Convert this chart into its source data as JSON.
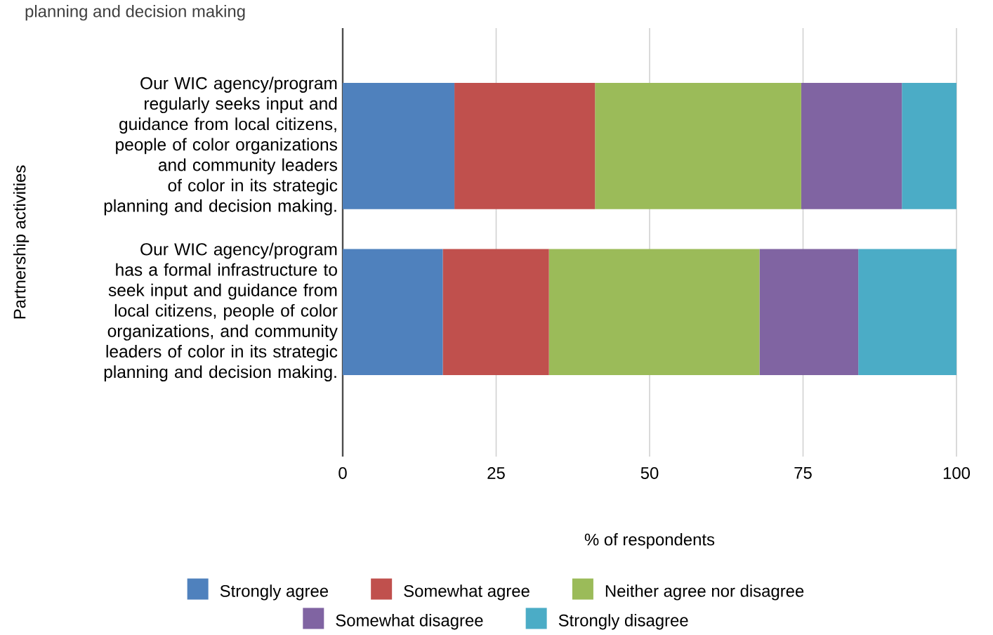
{
  "chart_data": {
    "type": "bar",
    "orientation": "horizontal",
    "stacked": true,
    "title": "planning and decision making",
    "categories": [
      "Our WIC agency/program regularly seeks input and guidance from local citizens, people of color organizations and community leaders of color in its strategic planning and decision making.",
      "Our WIC agency/program has a formal infrastructure to seek input and guidance from local citizens, people of color organizations, and community leaders of color in its strategic planning and decision making."
    ],
    "series": [
      {
        "name": "Strongly agree",
        "color": "#4f81bd",
        "values": [
          18.2,
          16.3
        ]
      },
      {
        "name": "Somewhat agree",
        "color": "#c0504d",
        "values": [
          22.9,
          17.3
        ]
      },
      {
        "name": "Neither agree nor disagree",
        "color": "#9bbb59",
        "values": [
          33.6,
          34.3
        ]
      },
      {
        "name": "Somewhat disagree",
        "color": "#8064a2",
        "values": [
          16.4,
          16.1
        ]
      },
      {
        "name": "Strongly disagree",
        "color": "#4bacc6",
        "values": [
          8.9,
          16.0
        ]
      }
    ],
    "xlim": [
      0,
      100
    ],
    "xticks": [
      0,
      25,
      50,
      75,
      100
    ],
    "xlabel": "% of respondents",
    "ylabel": "Partnership activities",
    "grid": "x",
    "legend": "bottom"
  }
}
